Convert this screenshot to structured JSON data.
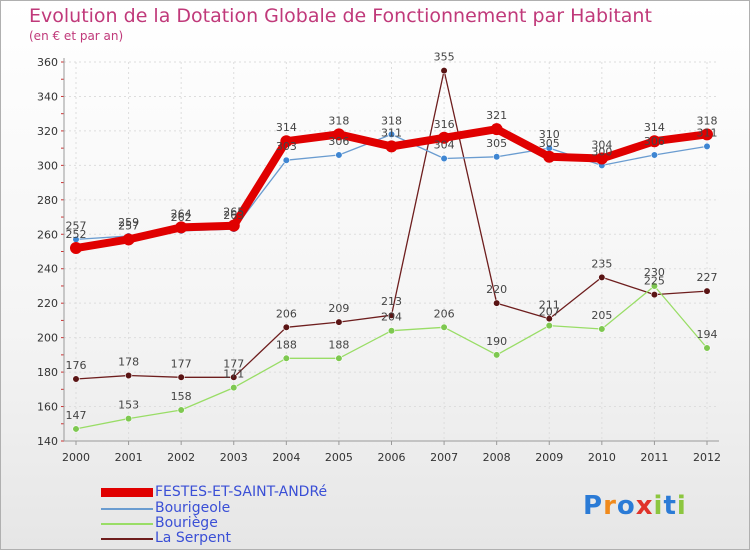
{
  "header": {
    "title": "Evolution de la Dotation Globale de Fonctionnement par Habitant",
    "subtitle": "(en € et par an)"
  },
  "logo": {
    "letters": [
      "P",
      "r",
      "o",
      "x",
      "i",
      "t",
      "i"
    ]
  },
  "colors": {
    "title": "#c0397a",
    "legend_text": "#3a4fd6",
    "series": [
      "#e00000",
      "#6a9cd0",
      "#99dd66",
      "#6e1e1e"
    ],
    "markers": [
      "#e00000",
      "#3f86d2",
      "#7ec850",
      "#5a1414"
    ],
    "logo": [
      "#2b7bd6",
      "#f08a1c",
      "#2b7bd6",
      "#e0332a",
      "#8cc63f",
      "#2b7bd6",
      "#8cc63f"
    ]
  },
  "chart_data": {
    "type": "line",
    "title": "Evolution de la Dotation Globale de Fonctionnement par Habitant",
    "subtitle": "(en € et par an)",
    "xlabel": "",
    "ylabel": "",
    "x": [
      2000,
      2001,
      2002,
      2003,
      2004,
      2005,
      2006,
      2007,
      2008,
      2009,
      2010,
      2011,
      2012
    ],
    "ylim": [
      140,
      360
    ],
    "yticks": [
      140,
      160,
      180,
      200,
      220,
      240,
      260,
      280,
      300,
      320,
      340,
      360
    ],
    "grid": true,
    "legend": "bottom-left",
    "series": [
      {
        "name": "FESTES-ET-SAINT-ANDRé",
        "values": [
          252,
          257,
          264,
          265,
          314,
          318,
          311,
          316,
          321,
          305,
          304,
          314,
          318
        ]
      },
      {
        "name": "Bourigeole",
        "values": [
          257,
          259,
          262,
          263,
          303,
          306,
          318,
          304,
          305,
          310,
          300,
          306,
          311
        ]
      },
      {
        "name": "Bouriège",
        "values": [
          147,
          153,
          158,
          171,
          188,
          188,
          204,
          206,
          190,
          207,
          205,
          230,
          194
        ]
      },
      {
        "name": "La Serpent",
        "values": [
          176,
          178,
          177,
          177,
          206,
          209,
          213,
          355,
          220,
          211,
          235,
          225,
          227
        ]
      }
    ]
  }
}
